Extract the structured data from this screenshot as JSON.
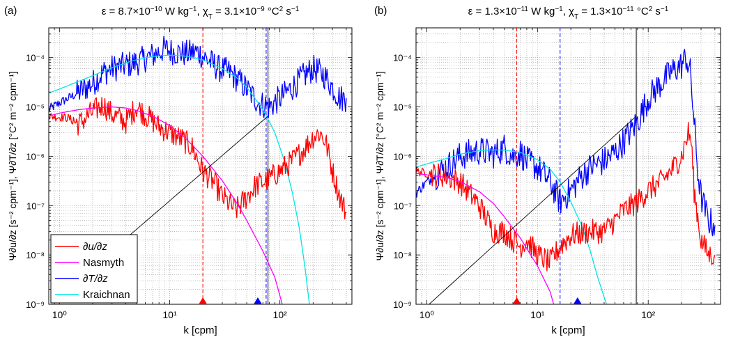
{
  "figure": {
    "background": "#ffffff"
  },
  "chart_data": [
    {
      "panel_label": "(a)",
      "title_parts": [
        "ε = 8.7×10",
        "−10",
        " W kg",
        "−1",
        ",  χ",
        "T",
        " = 3.1×10",
        "−9",
        " °C",
        "2",
        " s",
        "−1"
      ],
      "type": "line",
      "x_scale": "log",
      "y_scale": "log",
      "xlim": [
        0.8,
        450
      ],
      "ylim": [
        1e-09,
        0.0004
      ],
      "xlabel": "k [cpm]",
      "ylabel_left": "Ψ∂u/∂z [s⁻² cpm⁻¹]",
      "ylabel_right": "Ψ∂T/∂z [°C² m⁻² cpm⁻¹]",
      "x_ticks": [
        "10⁰",
        "10¹",
        "10²"
      ],
      "y_ticks": [
        "10⁻⁹",
        "10⁻⁸",
        "10⁻⁷",
        "10⁻⁶",
        "10⁻⁵",
        "10⁻⁴"
      ],
      "grid": true,
      "legend": {
        "placement": "bottom-left",
        "entries": [
          {
            "label": "∂u/∂z",
            "color": "#ff0000"
          },
          {
            "label": "Nasmyth",
            "color": "#ff00ff"
          },
          {
            "label": "∂T/∂z",
            "color": "#0000ff"
          },
          {
            "label": "Kraichnan",
            "color": "#00e5e5"
          }
        ]
      },
      "markers": [
        {
          "name": "red-triangle-marker",
          "x": 20,
          "color": "#ff0000"
        },
        {
          "name": "blue-triangle-marker",
          "x": 63,
          "color": "#0000ff"
        }
      ],
      "vlines": [
        {
          "x": 20,
          "color": "#ff0000",
          "style": "dashed"
        },
        {
          "x": 75,
          "color": "#0000ff",
          "style": "dashed"
        },
        {
          "x": 78,
          "color": "#000000",
          "style": "solid"
        }
      ],
      "series": [
        {
          "name": "∂T/∂z",
          "color": "#0000ff",
          "noise": 0.28,
          "noise_from": 1.4,
          "points": [
            [
              0.8,
              9e-06
            ],
            [
              1.0,
              1.2e-05
            ],
            [
              1.4,
              1.8e-05
            ],
            [
              2,
              3e-05
            ],
            [
              2.5,
              5e-05
            ],
            [
              3,
              6e-05
            ],
            [
              4,
              7e-05
            ],
            [
              5,
              8e-05
            ],
            [
              7,
              0.00011
            ],
            [
              9,
              0.00015
            ],
            [
              11,
              0.00013
            ],
            [
              14,
              0.00012
            ],
            [
              18,
              0.00013
            ],
            [
              22,
              9e-05
            ],
            [
              28,
              6e-05
            ],
            [
              35,
              5e-05
            ],
            [
              45,
              3e-05
            ],
            [
              55,
              1.8e-05
            ],
            [
              65,
              1.2e-05
            ],
            [
              80,
              1e-05
            ],
            [
              100,
              1.5e-05
            ],
            [
              130,
              2.5e-05
            ],
            [
              160,
              4e-05
            ],
            [
              200,
              6e-05
            ],
            [
              250,
              4.5e-05
            ],
            [
              300,
              2.5e-05
            ],
            [
              350,
              1.5e-05
            ],
            [
              400,
              1.5e-05
            ]
          ]
        },
        {
          "name": "Kraichnan",
          "color": "#00e5e5",
          "noise": 0,
          "points": [
            [
              0.8,
              1.9e-05
            ],
            [
              1,
              2.3e-05
            ],
            [
              1.5,
              3.3e-05
            ],
            [
              2,
              4.3e-05
            ],
            [
              3,
              6.2e-05
            ],
            [
              4,
              7.8e-05
            ],
            [
              5,
              9e-05
            ],
            [
              7,
              0.000105
            ],
            [
              10,
              0.000112
            ],
            [
              14,
              0.000107
            ],
            [
              20,
              9e-05
            ],
            [
              30,
              6e-05
            ],
            [
              40,
              4e-05
            ],
            [
              50,
              2.5e-05
            ],
            [
              70,
              9e-06
            ],
            [
              90,
              3e-06
            ],
            [
              110,
              8e-07
            ],
            [
              130,
              1.8e-07
            ],
            [
              150,
              3.5e-08
            ],
            [
              170,
              5e-09
            ],
            [
              185,
              1e-09
            ]
          ]
        },
        {
          "name": "∂u/∂z",
          "color": "#ff0000",
          "noise": 0.25,
          "noise_from": 1.3,
          "points": [
            [
              0.8,
              6.5e-06
            ],
            [
              1.2,
              6e-06
            ],
            [
              1.5,
              4.5e-06
            ],
            [
              2,
              8e-06
            ],
            [
              2.5,
              1.1e-05
            ],
            [
              3,
              7e-06
            ],
            [
              4,
              5e-06
            ],
            [
              5,
              1e-05
            ],
            [
              6,
              7e-06
            ],
            [
              8,
              4e-06
            ],
            [
              10,
              3e-06
            ],
            [
              13,
              2.2e-06
            ],
            [
              16,
              1.5e-06
            ],
            [
              20,
              5e-07
            ],
            [
              25,
              3e-07
            ],
            [
              30,
              1.5e-07
            ],
            [
              40,
              8e-08
            ],
            [
              50,
              1.5e-07
            ],
            [
              60,
              2.5e-07
            ],
            [
              80,
              3.5e-07
            ],
            [
              100,
              5e-07
            ],
            [
              130,
              8e-07
            ],
            [
              170,
              1.5e-06
            ],
            [
              200,
              2.5e-06
            ],
            [
              230,
              3e-06
            ],
            [
              260,
              2e-06
            ],
            [
              300,
              5e-07
            ],
            [
              350,
              1.5e-07
            ],
            [
              400,
              7e-08
            ]
          ]
        },
        {
          "name": "Nasmyth",
          "color": "#ff00ff",
          "noise": 0,
          "points": [
            [
              0.8,
              6.5e-06
            ],
            [
              1,
              7.5e-06
            ],
            [
              1.5,
              8.8e-06
            ],
            [
              2,
              9.5e-06
            ],
            [
              3,
              1e-05
            ],
            [
              4,
              9.5e-06
            ],
            [
              5,
              8.5e-06
            ],
            [
              7,
              6.5e-06
            ],
            [
              10,
              4.2e-06
            ],
            [
              14,
              2.3e-06
            ],
            [
              20,
              1e-06
            ],
            [
              30,
              3.2e-07
            ],
            [
              40,
              1.2e-07
            ],
            [
              50,
              5e-08
            ],
            [
              70,
              1.2e-08
            ],
            [
              90,
              3.5e-09
            ],
            [
              105,
              1e-09
            ]
          ]
        },
        {
          "name": "slope",
          "color": "#000000",
          "noise": 0,
          "points": [
            [
              3.2,
              1.4e-08
            ],
            [
              78,
              6.5e-06
            ]
          ]
        }
      ]
    },
    {
      "panel_label": "(b)",
      "title_parts": [
        "ε = 1.3×10",
        "−11",
        " W kg",
        "−1",
        ",  χ",
        "T",
        " = 1.3×10",
        "−11",
        " °C",
        "2",
        " s",
        "−1"
      ],
      "type": "line",
      "x_scale": "log",
      "y_scale": "log",
      "xlim": [
        0.8,
        450
      ],
      "ylim": [
        1e-09,
        0.0004
      ],
      "xlabel": "k [cpm]",
      "ylabel_left": "Ψ∂u/∂z [s⁻² cpm⁻¹]",
      "ylabel_right": "Ψ∂T/∂z [°C² m⁻² cpm⁻¹]",
      "x_ticks": [
        "10⁰",
        "10¹",
        "10²"
      ],
      "y_ticks": [
        "10⁻⁹",
        "10⁻⁸",
        "10⁻⁷",
        "10⁻⁶",
        "10⁻⁵",
        "10⁻⁴"
      ],
      "grid": true,
      "markers": [
        {
          "name": "red-triangle-marker",
          "x": 6.5,
          "color": "#ff0000"
        },
        {
          "name": "blue-triangle-marker",
          "x": 23,
          "color": "#0000ff"
        }
      ],
      "vlines": [
        {
          "x": 6.5,
          "color": "#ff0000",
          "style": "dashed"
        },
        {
          "x": 16,
          "color": "#0000ff",
          "style": "dashed"
        },
        {
          "x": 78,
          "color": "#000000",
          "style": "solid"
        }
      ],
      "series": [
        {
          "name": "∂T/∂z",
          "color": "#0000ff",
          "noise": 0.3,
          "noise_from": 1.2,
          "points": [
            [
              0.8,
              1.8e-07
            ],
            [
              1,
              3e-07
            ],
            [
              1.5,
              6e-07
            ],
            [
              2,
              1e-06
            ],
            [
              3,
              1.3e-06
            ],
            [
              4,
              1.1e-06
            ],
            [
              5,
              1.5e-06
            ],
            [
              6,
              1e-06
            ],
            [
              7,
              1.2e-06
            ],
            [
              8,
              8e-07
            ],
            [
              10,
              6e-07
            ],
            [
              13,
              3e-07
            ],
            [
              16,
              1.2e-07
            ],
            [
              20,
              2e-07
            ],
            [
              25,
              4e-07
            ],
            [
              30,
              6e-07
            ],
            [
              40,
              8e-07
            ],
            [
              50,
              1.2e-06
            ],
            [
              60,
              2e-06
            ],
            [
              80,
              5e-06
            ],
            [
              100,
              1.5e-05
            ],
            [
              130,
              3e-05
            ],
            [
              160,
              5e-05
            ],
            [
              200,
              7e-05
            ],
            [
              220,
              0.0001
            ],
            [
              240,
              5e-05
            ],
            [
              260,
              5e-06
            ],
            [
              280,
              5e-07
            ],
            [
              300,
              1.5e-07
            ],
            [
              350,
              5e-08
            ],
            [
              400,
              4e-08
            ]
          ]
        },
        {
          "name": "Kraichnan",
          "color": "#00e5e5",
          "noise": 0,
          "points": [
            [
              0.8,
              6e-07
            ],
            [
              1,
              7e-07
            ],
            [
              1.5,
              9e-07
            ],
            [
              2,
              1.1e-06
            ],
            [
              3,
              1.3e-06
            ],
            [
              4,
              1.35e-06
            ],
            [
              5,
              1.33e-06
            ],
            [
              7,
              1.2e-06
            ],
            [
              10,
              8.5e-07
            ],
            [
              13,
              5.5e-07
            ],
            [
              16,
              3e-07
            ],
            [
              20,
              1.2e-07
            ],
            [
              25,
              4e-08
            ],
            [
              30,
              1.2e-08
            ],
            [
              35,
              3.5e-09
            ],
            [
              42,
              1e-09
            ]
          ]
        },
        {
          "name": "∂u/∂z",
          "color": "#ff0000",
          "noise": 0.25,
          "noise_from": 1.1,
          "points": [
            [
              0.8,
              5e-07
            ],
            [
              1,
              4.5e-07
            ],
            [
              1.5,
              4e-07
            ],
            [
              2,
              3e-07
            ],
            [
              3,
              1e-07
            ],
            [
              4,
              3e-08
            ],
            [
              5,
              3e-08
            ],
            [
              6,
              2e-08
            ],
            [
              7,
              1.5e-08
            ],
            [
              8,
              2e-08
            ],
            [
              10,
              1e-08
            ],
            [
              13,
              7e-09
            ],
            [
              16,
              1.5e-08
            ],
            [
              20,
              2.5e-08
            ],
            [
              30,
              3e-08
            ],
            [
              40,
              3e-08
            ],
            [
              50,
              5e-08
            ],
            [
              60,
              8e-08
            ],
            [
              80,
              1.2e-07
            ],
            [
              100,
              2e-07
            ],
            [
              130,
              3e-07
            ],
            [
              160,
              5e-07
            ],
            [
              200,
              1e-06
            ],
            [
              230,
              3e-06
            ],
            [
              245,
              2e-06
            ],
            [
              260,
              2e-07
            ],
            [
              280,
              6e-08
            ],
            [
              300,
              2e-08
            ],
            [
              350,
              1e-08
            ],
            [
              400,
              1e-08
            ]
          ]
        },
        {
          "name": "Nasmyth",
          "color": "#ff00ff",
          "noise": 0,
          "points": [
            [
              0.8,
              4.5e-07
            ],
            [
              1,
              4.2e-07
            ],
            [
              1.5,
              3.7e-07
            ],
            [
              2,
              3.1e-07
            ],
            [
              3,
              1.9e-07
            ],
            [
              4,
              1.1e-07
            ],
            [
              5,
              6e-08
            ],
            [
              7,
              2.2e-08
            ],
            [
              10,
              6e-09
            ],
            [
              13,
              1.8e-09
            ],
            [
              14,
              1e-09
            ]
          ]
        },
        {
          "name": "slope",
          "color": "#000000",
          "noise": 0,
          "points": [
            [
              1.05,
              1e-09
            ],
            [
              78,
              6.5e-06
            ]
          ]
        }
      ]
    }
  ]
}
